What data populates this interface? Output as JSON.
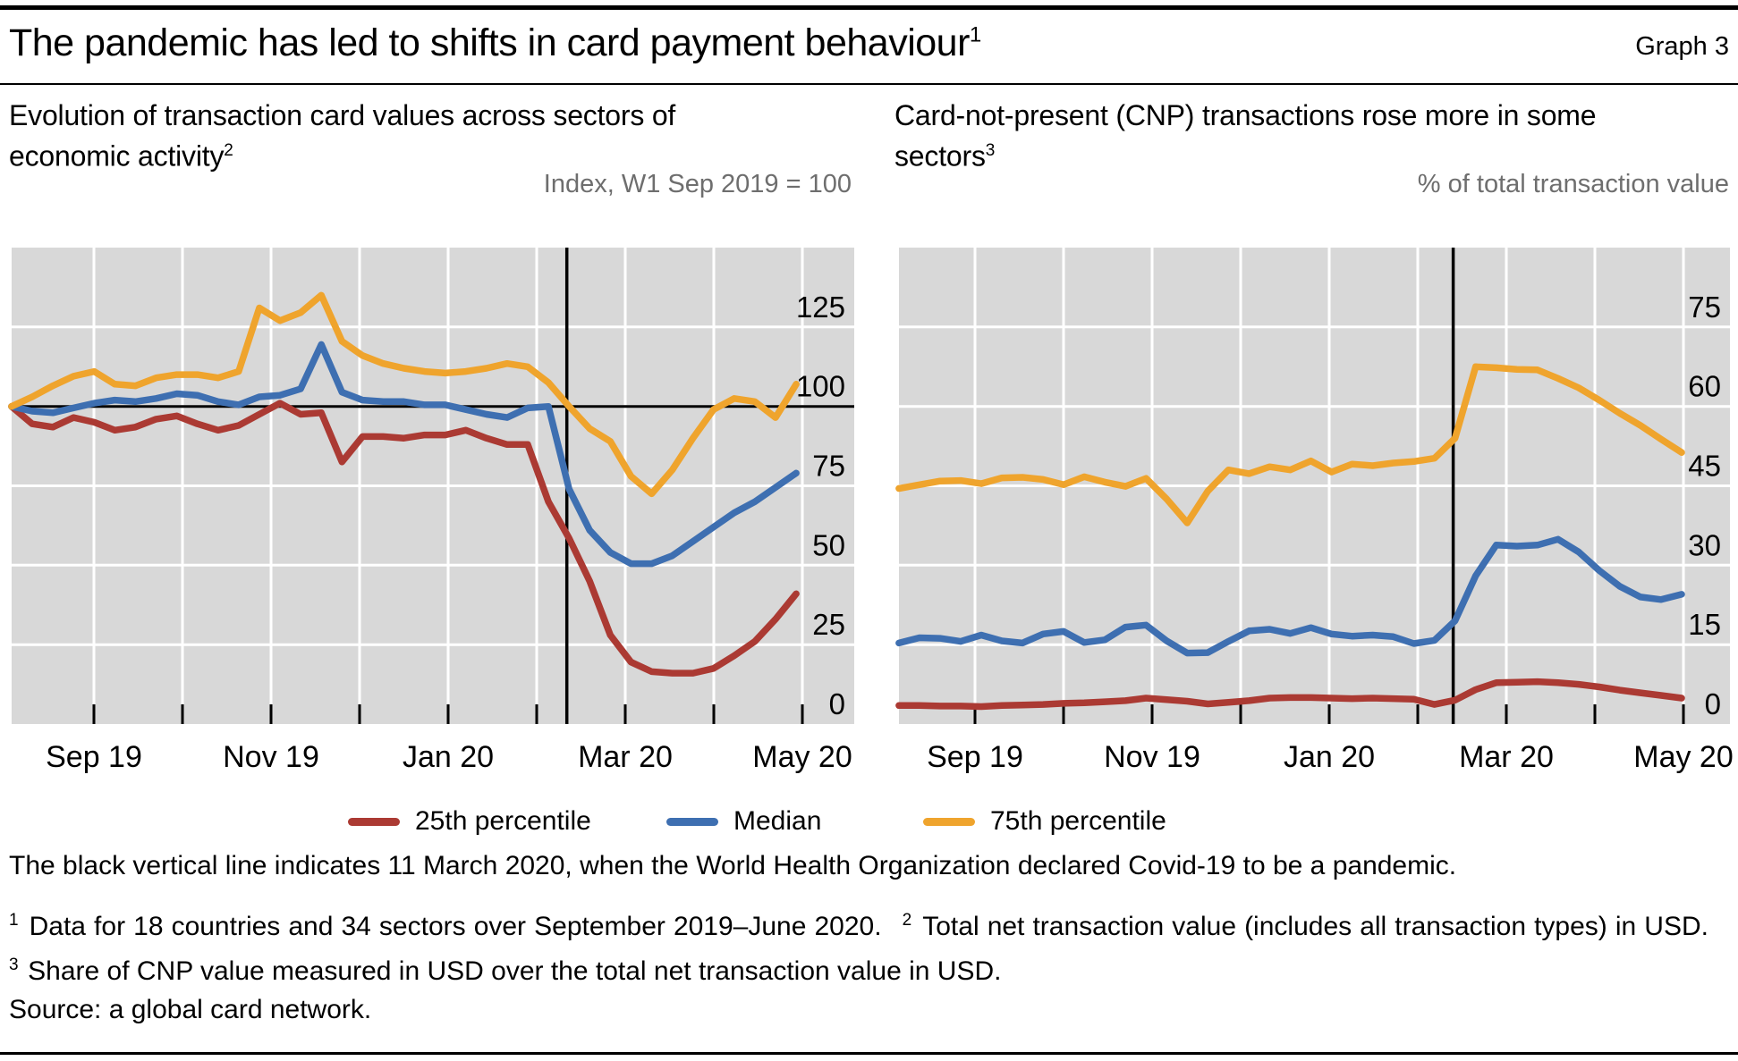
{
  "page": {
    "title": "The pandemic has led to shifts in card payment behaviour",
    "title_sup": "1",
    "graph_label": "Graph 3",
    "note": "The black vertical line indicates 11 March 2020, when the World Health Organization declared Covid-19 to be a pandemic.",
    "source": "Source: a global card network.",
    "footnotes": [
      {
        "sup": "1",
        "text": "Data for 18 countries and 34 sectors over September 2019–June 2020."
      },
      {
        "sup": "2",
        "text": "Total net transaction value (includes all transaction types) in USD."
      },
      {
        "sup": "3",
        "text": "Share of CNP value measured in USD over the total net transaction value in USD."
      }
    ]
  },
  "colors": {
    "red": "#ab3a33",
    "blue": "#3e6fb1",
    "yellow": "#efa42d",
    "plot_bg": "#d8d8d8",
    "grid": "#ffffff",
    "axis_line": "#000000",
    "unit_text": "#6e6e6e"
  },
  "legend": [
    {
      "label": "25th percentile",
      "color_key": "red"
    },
    {
      "label": "Median",
      "color_key": "blue"
    },
    {
      "label": "75th percentile",
      "color_key": "yellow"
    }
  ],
  "chart_data": [
    {
      "id": "card-values-index",
      "type": "line",
      "title_lines": [
        "Evolution of transaction card values across sectors of",
        "economic activity"
      ],
      "title_sup": "2",
      "unit_label": "Index, W1 Sep 2019 = 100",
      "x_tick_labels": [
        "Sep 19",
        "Nov 19",
        "Jan 20",
        "Mar 20",
        "May 20"
      ],
      "n_month_ticks": 9,
      "ylim": [
        0,
        150
      ],
      "yticks": [
        0,
        25,
        50,
        75,
        100,
        125
      ],
      "baseline": 100,
      "event_month": 5.34,
      "x_start_month": -0.93,
      "x_end_month": 7.93,
      "grid": true,
      "legend_position": "bottom",
      "series": [
        {
          "name": "25th percentile",
          "color_key": "red",
          "values": [
            100,
            94.5,
            93.5,
            96.5,
            95,
            92.5,
            93.5,
            96,
            97,
            94.5,
            92.5,
            94,
            97.5,
            101,
            97.5,
            98,
            82.5,
            90.5,
            90.5,
            90,
            91,
            91,
            92.5,
            90,
            88,
            88,
            70,
            58.5,
            45,
            28,
            19.5,
            16.5,
            16,
            16,
            17.5,
            21.5,
            26,
            33,
            41
          ]
        },
        {
          "name": "Median",
          "color_key": "blue",
          "values": [
            100,
            98.5,
            98,
            99.5,
            101,
            102,
            101.5,
            102.5,
            104,
            103.5,
            101.5,
            100.5,
            103,
            103.5,
            105.5,
            119.5,
            104.5,
            102,
            101.5,
            101.5,
            100.5,
            100.5,
            99,
            97.5,
            96.5,
            99.5,
            100,
            74,
            61,
            54,
            50.5,
            50.5,
            53,
            57.5,
            62,
            66.5,
            70,
            74.5,
            79
          ]
        },
        {
          "name": "75th percentile",
          "color_key": "yellow",
          "values": [
            100,
            103,
            106.5,
            109.5,
            111,
            107,
            106.5,
            109,
            110,
            110,
            109,
            111,
            131,
            127,
            129.5,
            135,
            120.5,
            116,
            113.5,
            112,
            111,
            110.5,
            111,
            112,
            113.5,
            112.5,
            107.5,
            100,
            93,
            89,
            78,
            72.5,
            80,
            90,
            99,
            102.5,
            101.5,
            96.5,
            107
          ]
        }
      ]
    },
    {
      "id": "cnp-share",
      "type": "line",
      "title_lines": [
        "Card-not-present (CNP) transactions rose more in some",
        "sectors"
      ],
      "title_sup": "3",
      "unit_label": "% of total transaction value",
      "x_tick_labels": [
        "Sep 19",
        "Nov 19",
        "Jan 20",
        "Mar 20",
        "May 20"
      ],
      "n_month_ticks": 9,
      "ylim": [
        0,
        90
      ],
      "yticks": [
        0,
        15,
        30,
        45,
        60,
        75
      ],
      "baseline": null,
      "event_month": 5.4,
      "x_start_month": -0.86,
      "x_end_month": 7.98,
      "grid": true,
      "legend_position": "bottom",
      "series": [
        {
          "name": "25th percentile",
          "color_key": "red",
          "values": [
            3.5,
            3.5,
            3.4,
            3.4,
            3.3,
            3.5,
            3.6,
            3.7,
            3.9,
            4,
            4.2,
            4.4,
            4.9,
            4.6,
            4.3,
            3.8,
            4.1,
            4.4,
            4.9,
            5,
            5,
            4.9,
            4.8,
            4.9,
            4.8,
            4.7,
            3.7,
            4.5,
            6.5,
            7.8,
            7.9,
            8,
            7.8,
            7.5,
            7,
            6.4,
            5.9,
            5.4,
            4.9
          ]
        },
        {
          "name": "Median",
          "color_key": "blue",
          "values": [
            15.3,
            16.3,
            16.2,
            15.6,
            16.8,
            15.7,
            15.3,
            17,
            17.5,
            15.4,
            15.9,
            18.3,
            18.7,
            15.7,
            13.4,
            13.5,
            15.6,
            17.6,
            17.9,
            17.1,
            18.2,
            17,
            16.6,
            16.8,
            16.5,
            15.2,
            15.8,
            19.5,
            28,
            33.8,
            33.6,
            33.8,
            34.9,
            32.5,
            29,
            26,
            24,
            23.5,
            24.5
          ]
        },
        {
          "name": "75th percentile",
          "color_key": "yellow",
          "values": [
            44.5,
            45.2,
            45.9,
            46,
            45.4,
            46.5,
            46.6,
            46.2,
            45.2,
            46.7,
            45.7,
            44.9,
            46.4,
            42.5,
            38,
            44,
            48,
            47.3,
            48.6,
            48,
            49.7,
            47.6,
            49.1,
            48.8,
            49.3,
            49.6,
            50.2,
            54,
            67.5,
            67.3,
            67,
            66.9,
            65.3,
            63.5,
            61.2,
            58.7,
            56.4,
            53.8,
            51.3
          ]
        }
      ]
    }
  ]
}
